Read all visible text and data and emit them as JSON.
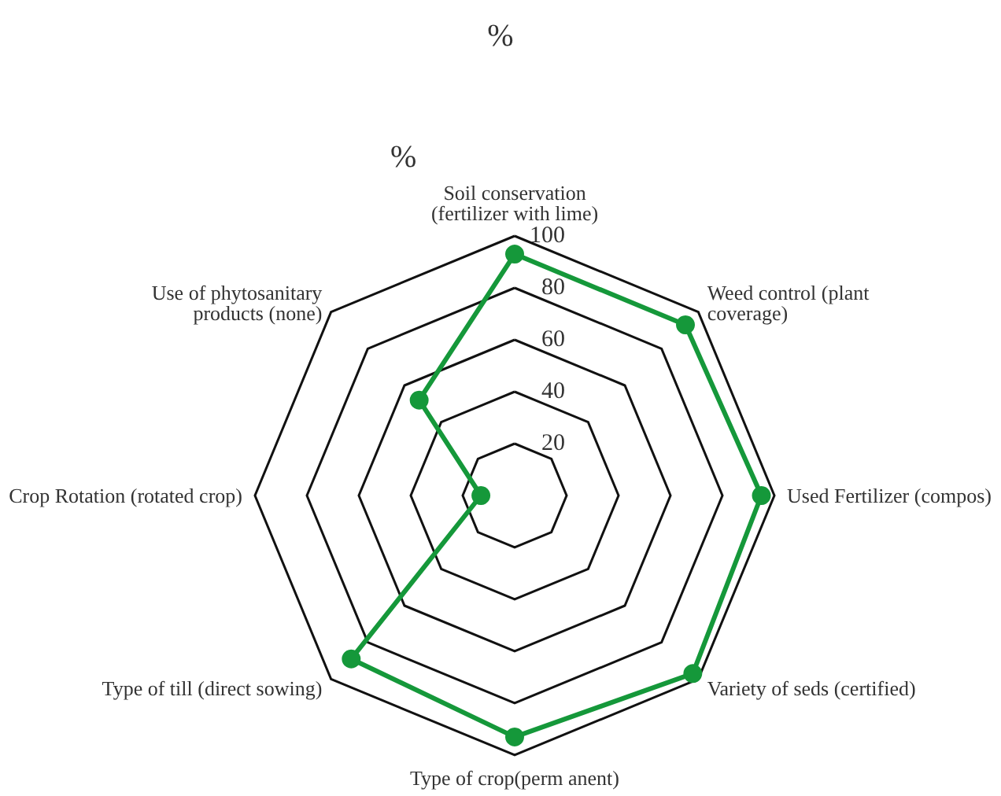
{
  "chart_data": {
    "type": "radar",
    "title": "%",
    "ylabel": "%",
    "categories": [
      "Soil conservation (fertilizer with lime)",
      "Weed control (plant coverage)",
      "Used Fertilizer (compos)",
      "Variety of seds (certified)",
      "Type of crop(perm anent)",
      "Type of till (direct sowing)",
      "Crop Rotation (rotated crop)",
      "Use of phytosanitary products (none)"
    ],
    "series": [
      {
        "color": "#15983a",
        "values": [
          93,
          93,
          95,
          97,
          93,
          89,
          13,
          52
        ]
      }
    ],
    "ylim": [
      0,
      100
    ],
    "yticks": [
      20,
      40,
      60,
      80,
      100
    ],
    "grid": true,
    "marker": "circle",
    "line_style": "solid"
  }
}
